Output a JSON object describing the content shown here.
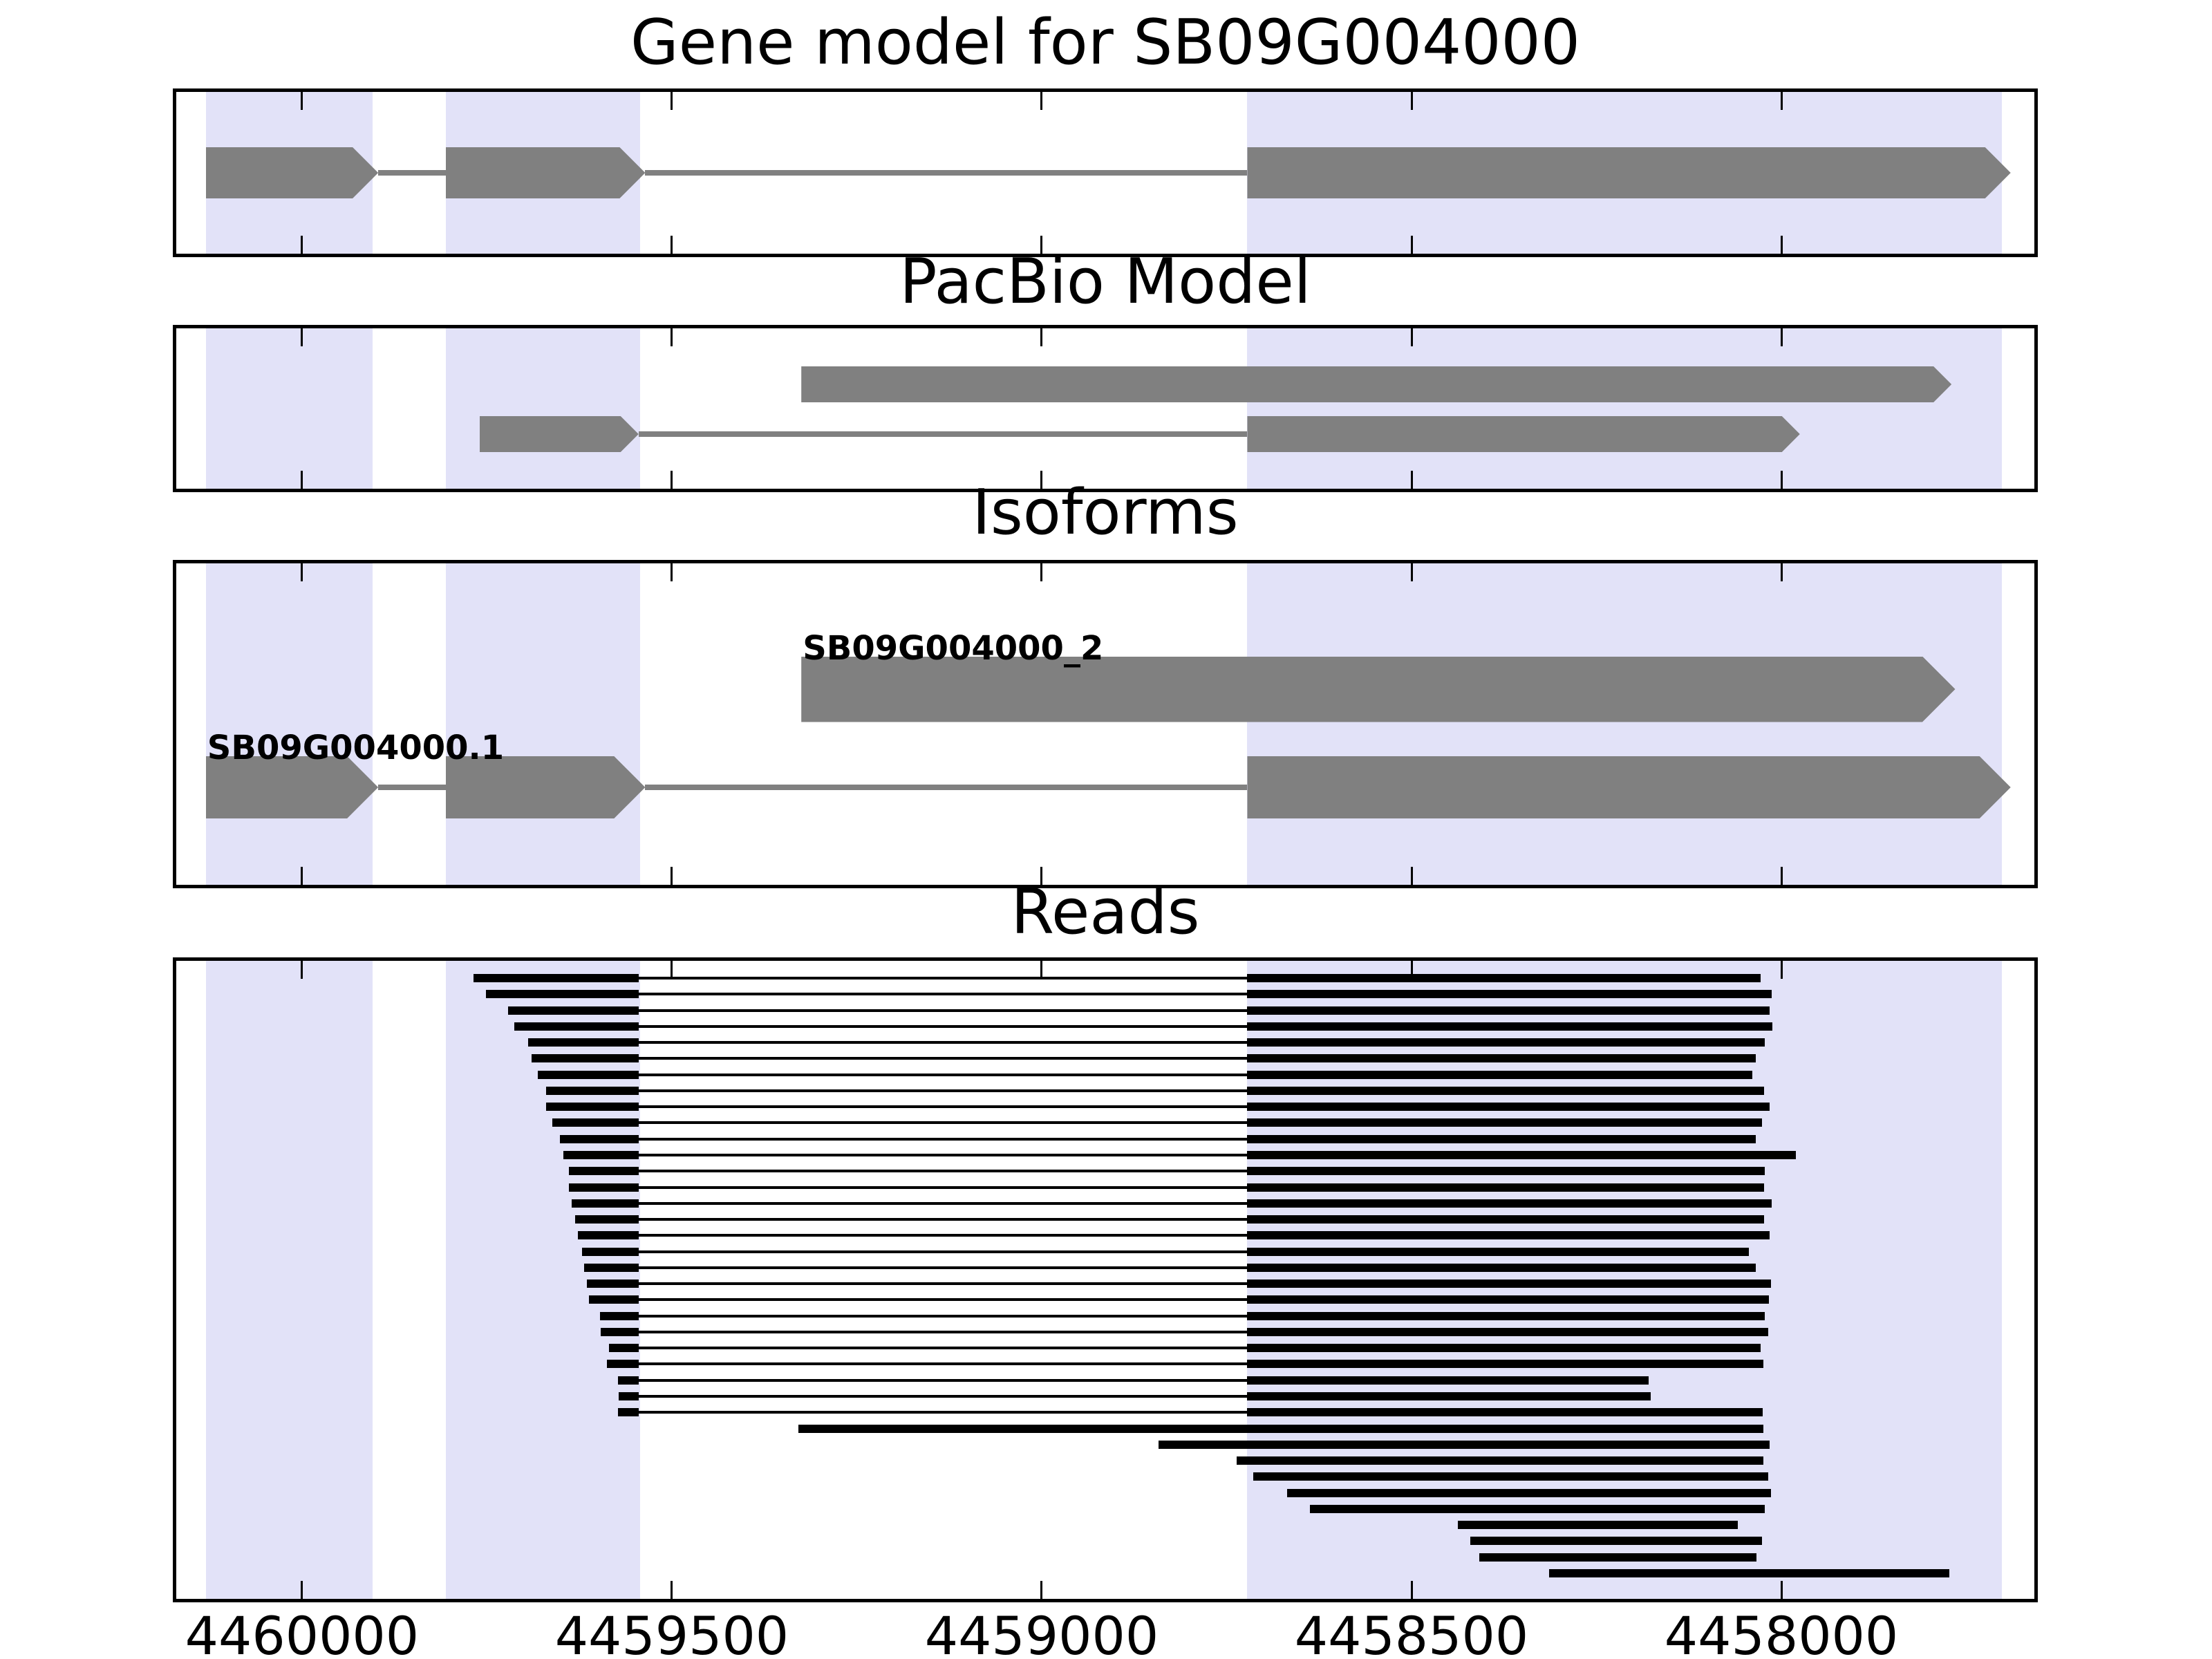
{
  "figure_title": "Gene model for SB09G004000",
  "colors": {
    "exon_fill": "#808080",
    "intron_line": "#808080",
    "read_fill": "#000000",
    "highlight_band": "#e2e2f8",
    "panel_border": "#000000",
    "background": "#ffffff",
    "text": "#000000"
  },
  "chart_data": {
    "type": "genome-tracks",
    "title": "Gene model for SB09G004000",
    "axis": {
      "orientation": "decreasing-left-to-right",
      "domain": [
        4460170,
        4457658
      ],
      "ticks": [
        4460000,
        4459500,
        4459000,
        4458500,
        4458000
      ],
      "tick_labels": [
        "4460000",
        "4459500",
        "4459000",
        "4458500",
        "4458000"
      ]
    },
    "highlight_regions": [
      [
        4460130,
        4459905
      ],
      [
        4459806,
        4459543
      ],
      [
        4458722,
        4457702
      ]
    ],
    "splice": {
      "left_exon_end": 4459545,
      "right_exon_start": 4458722
    },
    "panels": [
      {
        "title": "Gene model for SB09G004000",
        "rows": [
          {
            "label": null,
            "exons": [
              [
                4460130,
                4459897
              ],
              [
                4459806,
                4459536
              ],
              [
                4458722,
                4457690
              ]
            ]
          }
        ]
      },
      {
        "title": "PacBio Model",
        "rows": [
          {
            "label": null,
            "exons": [
              [
                4459325,
                4457770
              ]
            ]
          },
          {
            "label": null,
            "exons": [
              [
                4459760,
                4459545
              ],
              [
                4458722,
                4457975
              ]
            ]
          }
        ]
      },
      {
        "title": "Isoforms",
        "rows": [
          {
            "label": "SB09G004000_2",
            "exons": [
              [
                4459325,
                4457765
              ]
            ]
          },
          {
            "label": "SB09G004000.1",
            "exons": [
              [
                4460130,
                4459897
              ],
              [
                4459806,
                4459536
              ],
              [
                4458722,
                4457690
              ]
            ]
          }
        ]
      },
      {
        "title": "Reads",
        "reads": [
          {
            "s": 4459768,
            "e": 4458028,
            "spliced": true
          },
          {
            "s": 4459751,
            "e": 4458013,
            "spliced": true
          },
          {
            "s": 4459721,
            "e": 4458016,
            "spliced": true
          },
          {
            "s": 4459713,
            "e": 4458012,
            "spliced": true
          },
          {
            "s": 4459694,
            "e": 4458022,
            "spliced": true
          },
          {
            "s": 4459690,
            "e": 4458035,
            "spliced": true
          },
          {
            "s": 4459681,
            "e": 4458039,
            "spliced": true
          },
          {
            "s": 4459670,
            "e": 4458023,
            "spliced": true
          },
          {
            "s": 4459670,
            "e": 4458016,
            "spliced": true
          },
          {
            "s": 4459662,
            "e": 4458026,
            "spliced": true
          },
          {
            "s": 4459651,
            "e": 4458035,
            "spliced": true
          },
          {
            "s": 4459647,
            "e": 4457980,
            "spliced": true
          },
          {
            "s": 4459639,
            "e": 4458022,
            "spliced": true
          },
          {
            "s": 4459639,
            "e": 4458023,
            "spliced": true
          },
          {
            "s": 4459635,
            "e": 4458013,
            "spliced": true
          },
          {
            "s": 4459631,
            "e": 4458023,
            "spliced": true
          },
          {
            "s": 4459627,
            "e": 4458016,
            "spliced": true
          },
          {
            "s": 4459621,
            "e": 4458044,
            "spliced": true
          },
          {
            "s": 4459619,
            "e": 4458035,
            "spliced": true
          },
          {
            "s": 4459615,
            "e": 4458014,
            "spliced": true
          },
          {
            "s": 4459612,
            "e": 4458017,
            "spliced": true
          },
          {
            "s": 4459597,
            "e": 4458022,
            "spliced": true
          },
          {
            "s": 4459596,
            "e": 4458018,
            "spliced": true
          },
          {
            "s": 4459585,
            "e": 4458028,
            "spliced": true
          },
          {
            "s": 4459588,
            "e": 4458024,
            "spliced": true
          },
          {
            "s": 4459573,
            "e": 4458179,
            "spliced": true
          },
          {
            "s": 4459572,
            "e": 4458177,
            "spliced": true
          },
          {
            "s": 4459573,
            "e": 4458025,
            "spliced": true
          },
          {
            "s": 4459329,
            "e": 4458024,
            "spliced": false
          },
          {
            "s": 4458842,
            "e": 4458016,
            "spliced": false
          },
          {
            "s": 4458736,
            "e": 4458024,
            "spliced": false
          },
          {
            "s": 4458714,
            "e": 4458018,
            "spliced": false
          },
          {
            "s": 4458668,
            "e": 4458014,
            "spliced": false
          },
          {
            "s": 4458637,
            "e": 4458022,
            "spliced": false
          },
          {
            "s": 4458437,
            "e": 4458059,
            "spliced": false
          },
          {
            "s": 4458421,
            "e": 4458026,
            "spliced": false
          },
          {
            "s": 4458408,
            "e": 4458034,
            "spliced": false
          },
          {
            "s": 4458314,
            "e": 4457773,
            "spliced": false
          }
        ]
      }
    ]
  }
}
